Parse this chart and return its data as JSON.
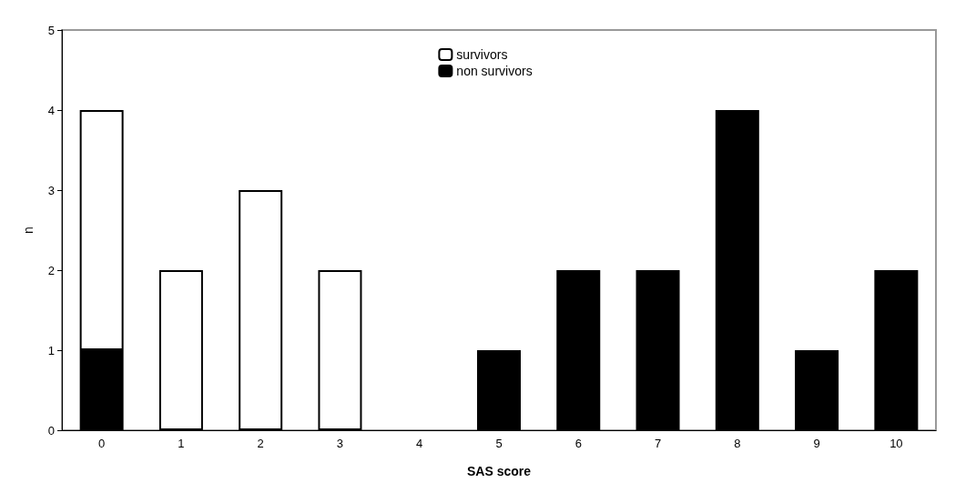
{
  "chart_data": {
    "type": "bar",
    "stacked": true,
    "xlabel": "SAS score",
    "ylabel": "n",
    "categories": [
      "0",
      "1",
      "2",
      "3",
      "4",
      "5",
      "6",
      "7",
      "8",
      "9",
      "10"
    ],
    "series": [
      {
        "name": "non survivors",
        "color": "#000000",
        "values": [
          1,
          0,
          0,
          0,
          0,
          1,
          2,
          2,
          4,
          1,
          2
        ]
      },
      {
        "name": "survivors",
        "color": "#ffffff",
        "values": [
          3,
          2,
          3,
          2,
          0,
          0,
          0,
          0,
          0,
          0,
          0
        ]
      }
    ],
    "ylim": [
      0,
      5
    ],
    "yticks": [
      0,
      1,
      2,
      3,
      4,
      5
    ],
    "grid": false,
    "legend": "top"
  }
}
